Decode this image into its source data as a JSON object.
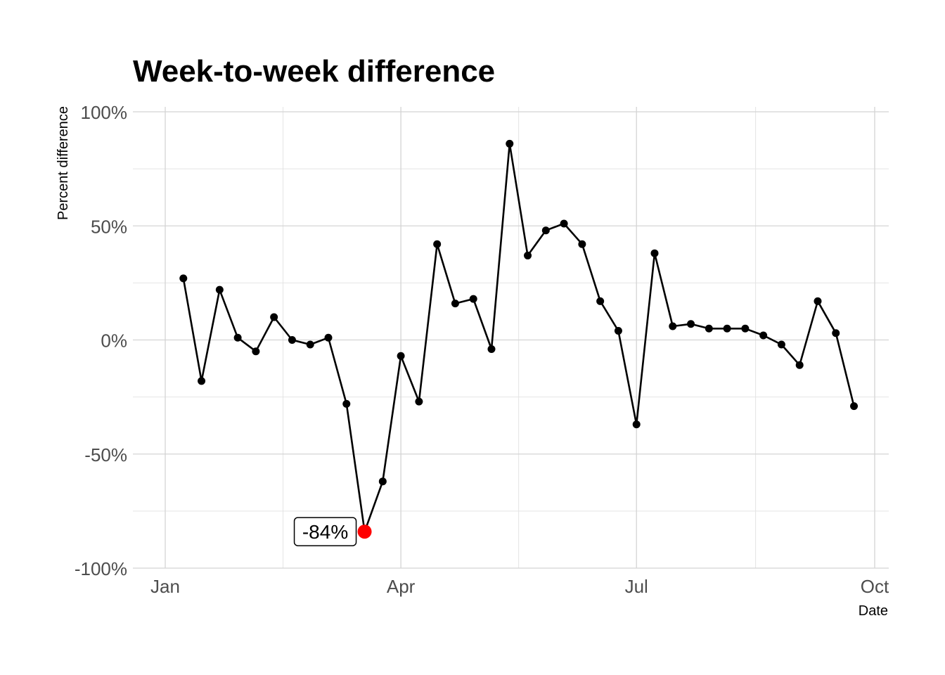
{
  "chart_data": {
    "type": "line",
    "title": "Week-to-week difference",
    "xlabel": "Date",
    "ylabel": "Percent difference",
    "x_axis": "date",
    "xlim": [
      "2020-12-28",
      "2020-10-03"
    ],
    "ylim": [
      -100,
      100
    ],
    "y_ticks": [
      {
        "value": 100,
        "label": "100%"
      },
      {
        "value": 50,
        "label": "50%"
      },
      {
        "value": 0,
        "label": "0%"
      },
      {
        "value": -50,
        "label": "-50%"
      },
      {
        "value": -100,
        "label": "-100%"
      }
    ],
    "x_ticks": [
      {
        "value": "2020-01-01",
        "label": "Jan"
      },
      {
        "value": "2020-04-01",
        "label": "Apr"
      },
      {
        "value": "2020-07-01",
        "label": "Jul"
      },
      {
        "value": "2020-10-01",
        "label": "Oct"
      }
    ],
    "grid": true,
    "line_color": "#000000",
    "highlight_color": "#ff0000",
    "series": [
      {
        "points": [
          {
            "x": "2020-01-08",
            "y": 27
          },
          {
            "x": "2020-01-15",
            "y": -18
          },
          {
            "x": "2020-01-22",
            "y": 22
          },
          {
            "x": "2020-01-29",
            "y": 1
          },
          {
            "x": "2020-02-05",
            "y": -5
          },
          {
            "x": "2020-02-12",
            "y": 10
          },
          {
            "x": "2020-02-19",
            "y": 0
          },
          {
            "x": "2020-02-26",
            "y": -2
          },
          {
            "x": "2020-03-04",
            "y": 1
          },
          {
            "x": "2020-03-11",
            "y": -28
          },
          {
            "x": "2020-03-18",
            "y": -84
          },
          {
            "x": "2020-03-25",
            "y": -62
          },
          {
            "x": "2020-04-01",
            "y": -7
          },
          {
            "x": "2020-04-08",
            "y": -27
          },
          {
            "x": "2020-04-15",
            "y": 42
          },
          {
            "x": "2020-04-22",
            "y": 16
          },
          {
            "x": "2020-04-29",
            "y": 18
          },
          {
            "x": "2020-05-06",
            "y": -4
          },
          {
            "x": "2020-05-13",
            "y": 86
          },
          {
            "x": "2020-05-20",
            "y": 37
          },
          {
            "x": "2020-05-27",
            "y": 48
          },
          {
            "x": "2020-06-03",
            "y": 51
          },
          {
            "x": "2020-06-10",
            "y": 42
          },
          {
            "x": "2020-06-17",
            "y": 17
          },
          {
            "x": "2020-06-24",
            "y": 4
          },
          {
            "x": "2020-07-01",
            "y": -37
          },
          {
            "x": "2020-07-08",
            "y": 38
          },
          {
            "x": "2020-07-15",
            "y": 6
          },
          {
            "x": "2020-07-22",
            "y": 7
          },
          {
            "x": "2020-07-29",
            "y": 5
          },
          {
            "x": "2020-08-05",
            "y": 5
          },
          {
            "x": "2020-08-12",
            "y": 5
          },
          {
            "x": "2020-08-19",
            "y": 2
          },
          {
            "x": "2020-08-26",
            "y": -2
          },
          {
            "x": "2020-09-02",
            "y": -11
          },
          {
            "x": "2020-09-09",
            "y": 17
          },
          {
            "x": "2020-09-16",
            "y": 3
          },
          {
            "x": "2020-09-23",
            "y": -29
          }
        ]
      }
    ],
    "annotation": {
      "x": "2020-03-18",
      "y": -84,
      "label": "-84%"
    }
  }
}
